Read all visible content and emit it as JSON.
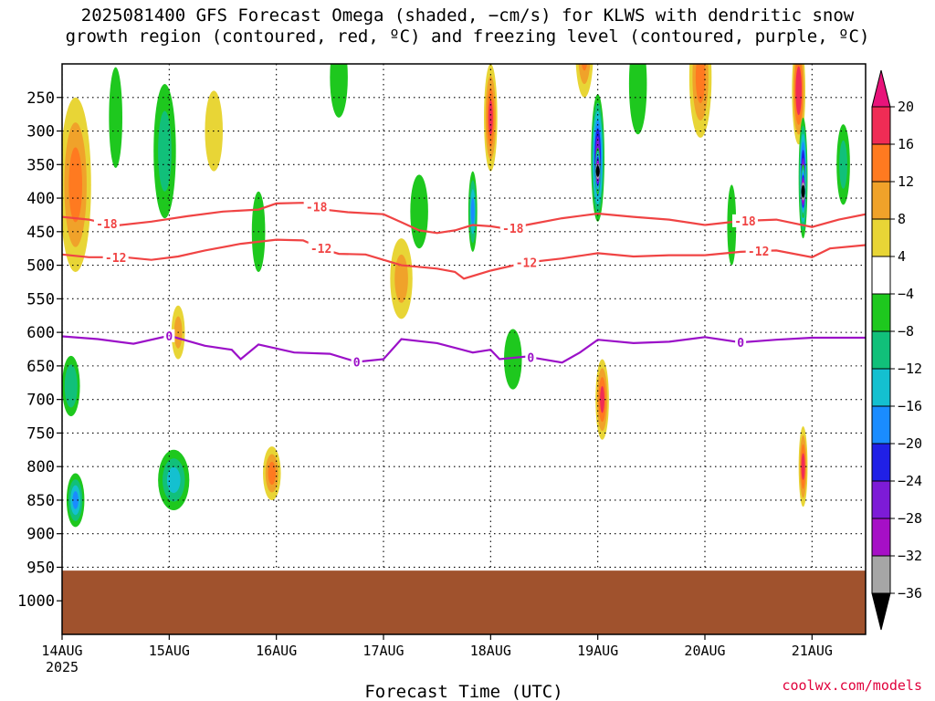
{
  "title": {
    "line1": "2025081400 GFS Forecast Omega (shaded, −cm/s) for KLWS with dendritic snow",
    "line2": "growth region (contoured, red, ºC) and freezing level (contoured, purple, ºC)"
  },
  "credit": "coolwx.com/models",
  "chart_data": {
    "type": "heatmap",
    "xlabel": "Forecast Time (UTC)",
    "x_ticks": [
      {
        "label": "14AUG",
        "sub": "2025",
        "hour": 0
      },
      {
        "label": "15AUG",
        "sub": "",
        "hour": 24
      },
      {
        "label": "16AUG",
        "sub": "",
        "hour": 48
      },
      {
        "label": "17AUG",
        "sub": "",
        "hour": 72
      },
      {
        "label": "18AUG",
        "sub": "",
        "hour": 96
      },
      {
        "label": "19AUG",
        "sub": "",
        "hour": 120
      },
      {
        "label": "20AUG",
        "sub": "",
        "hour": 144
      },
      {
        "label": "21AUG",
        "sub": "",
        "hour": 168
      }
    ],
    "xlim": [
      0,
      180
    ],
    "ylabel": "",
    "y_ticks": [
      "250",
      "300",
      "350",
      "400",
      "450",
      "500",
      "550",
      "600",
      "650",
      "700",
      "750",
      "800",
      "850",
      "900",
      "950",
      "1000"
    ],
    "ylim": [
      200,
      1050
    ],
    "grid": true,
    "surface": {
      "top_hpa": 955,
      "color": "#a0522d"
    },
    "colorbar": {
      "labels": [
        "20",
        "16",
        "12",
        "8",
        "4",
        "−4",
        "−8",
        "−12",
        "−16",
        "−20",
        "−24",
        "−28",
        "−32",
        "−36"
      ],
      "bins": [
        {
          "from": 16,
          "to": 20,
          "color": "#f02c55"
        },
        {
          "from": 12,
          "to": 16,
          "color": "#ff7a20"
        },
        {
          "from": 8,
          "to": 12,
          "color": "#f0a22a"
        },
        {
          "from": 4,
          "to": 8,
          "color": "#e8d536"
        },
        {
          "from": -4,
          "to": 4,
          "color": "#ffffff"
        },
        {
          "from": -8,
          "to": -4,
          "color": "#1ec81e"
        },
        {
          "from": -12,
          "to": -8,
          "color": "#11c07a"
        },
        {
          "from": -16,
          "to": -12,
          "color": "#14c0d0"
        },
        {
          "from": -20,
          "to": -16,
          "color": "#1a8cff"
        },
        {
          "from": -24,
          "to": -20,
          "color": "#2020e6"
        },
        {
          "from": -28,
          "to": -24,
          "color": "#7d1bd7"
        },
        {
          "from": -32,
          "to": -28,
          "color": "#a60fc6"
        },
        {
          "from": -36,
          "to": -32,
          "color": "#a6a6a6"
        }
      ],
      "over_color": "#e8137a",
      "under_color": "#000000"
    },
    "omega_features": [
      {
        "t": 3,
        "p": 370,
        "dt": 5,
        "dp": 220,
        "v": 20
      },
      {
        "t": 3,
        "p": 380,
        "dt": 7,
        "dp": 260,
        "v": 14
      },
      {
        "t": 2,
        "p": 680,
        "dt": 4,
        "dp": 90,
        "v": -12
      },
      {
        "t": 3,
        "p": 850,
        "dt": 4,
        "dp": 80,
        "v": -18
      },
      {
        "t": 12,
        "p": 280,
        "dt": 3,
        "dp": 150,
        "v": -6
      },
      {
        "t": 23,
        "p": 330,
        "dt": 5,
        "dp": 200,
        "v": -10
      },
      {
        "t": 26,
        "p": 600,
        "dt": 3,
        "dp": 80,
        "v": 10
      },
      {
        "t": 25,
        "p": 820,
        "dt": 7,
        "dp": 90,
        "v": -14
      },
      {
        "t": 34,
        "p": 300,
        "dt": 4,
        "dp": 120,
        "v": 6
      },
      {
        "t": 47,
        "p": 810,
        "dt": 4,
        "dp": 80,
        "v": 12
      },
      {
        "t": 44,
        "p": 450,
        "dt": 3,
        "dp": 120,
        "v": -6
      },
      {
        "t": 62,
        "p": 220,
        "dt": 4,
        "dp": 120,
        "v": -6
      },
      {
        "t": 76,
        "p": 520,
        "dt": 5,
        "dp": 120,
        "v": 10
      },
      {
        "t": 80,
        "p": 420,
        "dt": 4,
        "dp": 110,
        "v": -6
      },
      {
        "t": 92,
        "p": 420,
        "dt": 2,
        "dp": 120,
        "v": -18
      },
      {
        "t": 96,
        "p": 280,
        "dt": 3,
        "dp": 160,
        "v": 16
      },
      {
        "t": 101,
        "p": 640,
        "dt": 4,
        "dp": 90,
        "v": -8
      },
      {
        "t": 117,
        "p": 180,
        "dt": 4,
        "dp": 140,
        "v": 12
      },
      {
        "t": 120,
        "p": 340,
        "dt": 3,
        "dp": 190,
        "v": -28
      },
      {
        "t": 120,
        "p": 360,
        "dt": 1.2,
        "dp": 70,
        "v": -40
      },
      {
        "t": 121,
        "p": 700,
        "dt": 3,
        "dp": 120,
        "v": 16
      },
      {
        "t": 129,
        "p": 230,
        "dt": 4,
        "dp": 150,
        "v": -6
      },
      {
        "t": 143,
        "p": 220,
        "dt": 5,
        "dp": 180,
        "v": 12
      },
      {
        "t": 150,
        "p": 440,
        "dt": 2,
        "dp": 120,
        "v": -8
      },
      {
        "t": 165,
        "p": 240,
        "dt": 3,
        "dp": 160,
        "v": 20
      },
      {
        "t": 166,
        "p": 370,
        "dt": 2,
        "dp": 180,
        "v": -28
      },
      {
        "t": 166,
        "p": 390,
        "dt": 1.2,
        "dp": 80,
        "v": -40
      },
      {
        "t": 166,
        "p": 800,
        "dt": 2,
        "dp": 120,
        "v": 18
      },
      {
        "t": 175,
        "p": 350,
        "dt": 3,
        "dp": 120,
        "v": -10
      }
    ],
    "contours": [
      {
        "label": "-18",
        "color": "#f04444",
        "label_hours": [
          10,
          57,
          101,
          153
        ],
        "points": [
          [
            0,
            428
          ],
          [
            6,
            432
          ],
          [
            12,
            441
          ],
          [
            20,
            435
          ],
          [
            28,
            427
          ],
          [
            36,
            420
          ],
          [
            44,
            417
          ],
          [
            48,
            408
          ],
          [
            54,
            407
          ],
          [
            60,
            418
          ],
          [
            64,
            421
          ],
          [
            72,
            424
          ],
          [
            76,
            436
          ],
          [
            80,
            448
          ],
          [
            84,
            452
          ],
          [
            88,
            448
          ],
          [
            92,
            440
          ],
          [
            96,
            442
          ],
          [
            100,
            446
          ],
          [
            104,
            440
          ],
          [
            112,
            430
          ],
          [
            120,
            423
          ],
          [
            128,
            428
          ],
          [
            136,
            432
          ],
          [
            144,
            440
          ],
          [
            152,
            434
          ],
          [
            160,
            432
          ],
          [
            168,
            443
          ],
          [
            174,
            432
          ],
          [
            180,
            424
          ]
        ]
      },
      {
        "label": "-12",
        "color": "#f04444",
        "label_hours": [
          12,
          58,
          104,
          156
        ],
        "points": [
          [
            0,
            484
          ],
          [
            6,
            488
          ],
          [
            14,
            488
          ],
          [
            20,
            492
          ],
          [
            26,
            487
          ],
          [
            32,
            478
          ],
          [
            40,
            468
          ],
          [
            48,
            462
          ],
          [
            54,
            463
          ],
          [
            58,
            475
          ],
          [
            62,
            483
          ],
          [
            68,
            484
          ],
          [
            72,
            492
          ],
          [
            76,
            500
          ],
          [
            84,
            505
          ],
          [
            88,
            510
          ],
          [
            90,
            520
          ],
          [
            96,
            508
          ],
          [
            104,
            496
          ],
          [
            112,
            490
          ],
          [
            120,
            482
          ],
          [
            128,
            487
          ],
          [
            136,
            485
          ],
          [
            144,
            485
          ],
          [
            152,
            480
          ],
          [
            160,
            478
          ],
          [
            168,
            488
          ],
          [
            172,
            475
          ],
          [
            180,
            470
          ]
        ]
      },
      {
        "label": "0",
        "color": "#9b10c8",
        "label_hours": [
          24,
          66,
          105,
          152
        ],
        "points": [
          [
            0,
            606
          ],
          [
            8,
            610
          ],
          [
            16,
            617
          ],
          [
            24,
            605
          ],
          [
            32,
            620
          ],
          [
            38,
            626
          ],
          [
            40,
            640
          ],
          [
            44,
            618
          ],
          [
            52,
            630
          ],
          [
            60,
            632
          ],
          [
            66,
            644
          ],
          [
            72,
            640
          ],
          [
            76,
            610
          ],
          [
            84,
            616
          ],
          [
            92,
            630
          ],
          [
            96,
            626
          ],
          [
            98,
            640
          ],
          [
            104,
            636
          ],
          [
            112,
            645
          ],
          [
            116,
            630
          ],
          [
            120,
            611
          ],
          [
            128,
            616
          ],
          [
            136,
            614
          ],
          [
            144,
            607
          ],
          [
            152,
            615
          ],
          [
            160,
            611
          ],
          [
            168,
            608
          ],
          [
            180,
            608
          ]
        ]
      }
    ]
  }
}
